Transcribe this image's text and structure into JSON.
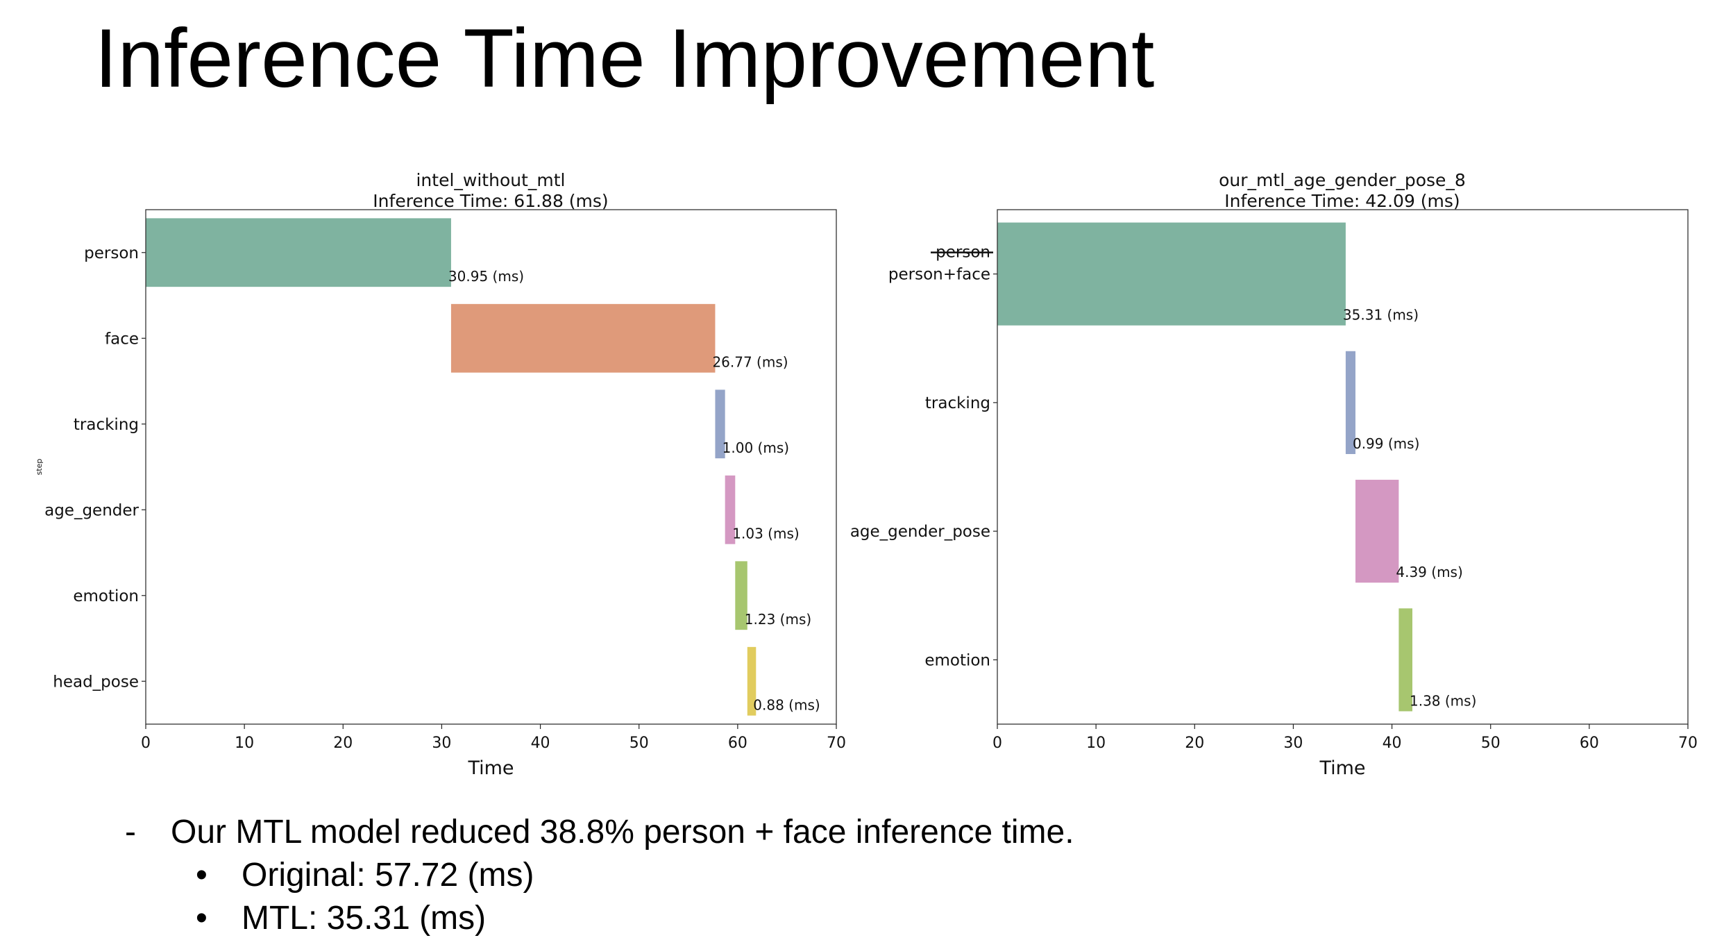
{
  "slide": {
    "title": "Inference Time Improvement"
  },
  "chart_data": [
    {
      "type": "bar",
      "orientation": "horizontal-gantt",
      "title": "intel_without_mtl",
      "subtitle": "Inference Time: 61.88 (ms)",
      "xlabel": "Time",
      "ylabel": "step",
      "xlim": [
        0,
        70
      ],
      "xticks": [
        0,
        10,
        20,
        30,
        40,
        50,
        60,
        70
      ],
      "categories": [
        "person",
        "face",
        "tracking",
        "age_gender",
        "emotion",
        "head_pose"
      ],
      "starts": [
        0,
        30.95,
        57.72,
        58.72,
        59.75,
        60.98
      ],
      "durations": [
        30.95,
        26.77,
        1.0,
        1.03,
        1.23,
        0.88
      ],
      "labels": [
        "30.95 (ms)",
        "26.77 (ms)",
        "1.00 (ms)",
        "1.03 (ms)",
        "1.23 (ms)",
        "0.88 (ms)"
      ],
      "colors": [
        "#7fb3a0",
        "#df9a7a",
        "#94a4c8",
        "#d498c2",
        "#a7c66f",
        "#e1cc5e"
      ]
    },
    {
      "type": "bar",
      "orientation": "horizontal-gantt",
      "title": "our_mtl_age_gender_pose_8",
      "subtitle": "Inference Time: 42.09 (ms)",
      "xlabel": "Time",
      "ylabel": "",
      "xlim": [
        0,
        70
      ],
      "xticks": [
        0,
        10,
        20,
        30,
        40,
        50,
        60,
        70
      ],
      "categories": [
        "person+face",
        "tracking",
        "age_gender_pose",
        "emotion"
      ],
      "struck_label": "person",
      "starts": [
        0,
        35.31,
        36.3,
        40.69
      ],
      "durations": [
        35.31,
        0.99,
        4.39,
        1.38
      ],
      "labels": [
        "35.31 (ms)",
        "0.99 (ms)",
        "4.39 (ms)",
        "1.38 (ms)"
      ],
      "colors": [
        "#7fb3a0",
        "#94a4c8",
        "#d498c2",
        "#a7c66f"
      ]
    }
  ],
  "bullets": {
    "main_marker": "-",
    "main": "Our MTL model reduced 38.8% person + face inference time.",
    "sub_marker": "•",
    "sub": [
      "Original: 57.72 (ms)",
      "MTL: 35.31 (ms)"
    ]
  }
}
